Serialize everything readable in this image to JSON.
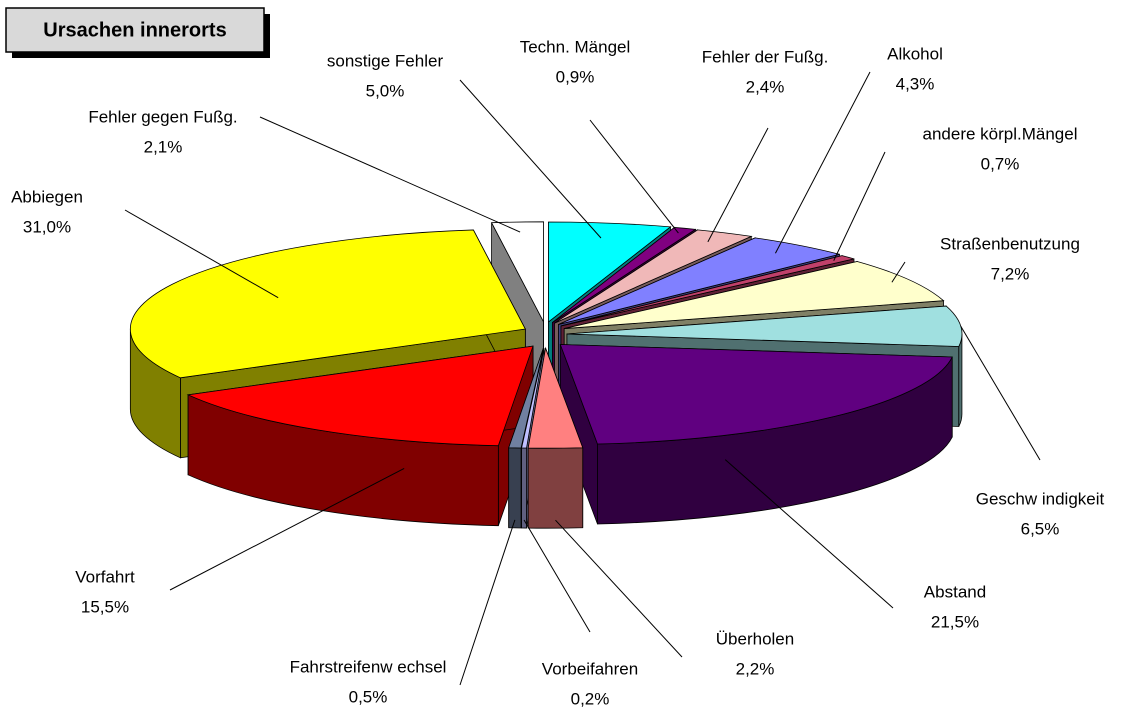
{
  "chart_data": {
    "type": "pie",
    "title": "Ursachen innerorts",
    "categories": [
      "sonstige Fehler",
      "Techn. Mängel",
      "Fehler der Fußg.",
      "Alkohol",
      "andere körpl.Mängel",
      "Straßenbenutzung",
      "Geschw indigkeit",
      "Abstand",
      "Überholen",
      "Vorbeifahren",
      "Fahrstreifenw echsel",
      "Vorfahrt",
      "Abbiegen",
      "Fehler gegen Fußg."
    ],
    "values": [
      5.0,
      0.9,
      2.4,
      4.3,
      0.7,
      7.2,
      6.5,
      21.5,
      2.2,
      0.2,
      0.5,
      15.5,
      31.0,
      2.1
    ],
    "value_labels": [
      "5,0%",
      "0,9%",
      "2,4%",
      "4,3%",
      "0,7%",
      "7,2%",
      "6,5%",
      "21,5%",
      "2,2%",
      "0,2%",
      "0,5%",
      "15,5%",
      "31,0%",
      "2,1%"
    ],
    "colors": [
      "#00ffff",
      "#800080",
      "#f0b8b8",
      "#8080ff",
      "#c0406a",
      "#ffffcc",
      "#a0e0e0",
      "#600080",
      "#ff8080",
      "#c0c0ff",
      "#7080a0",
      "#ff0000",
      "#ffff00",
      "#ffffff"
    ]
  }
}
